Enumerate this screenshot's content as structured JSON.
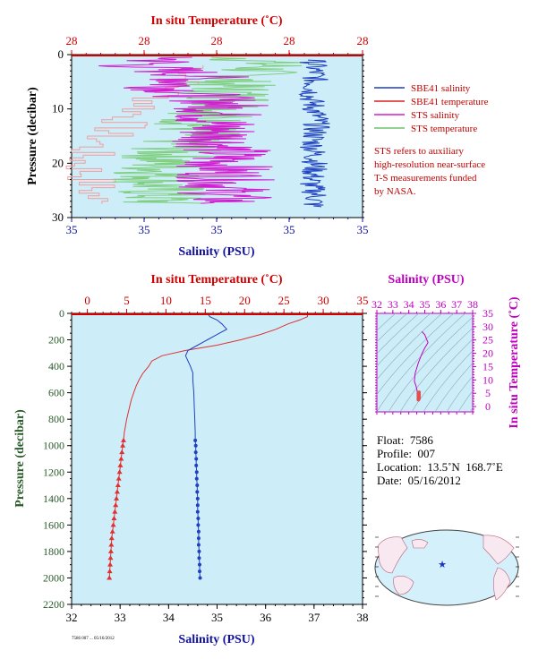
{
  "top_panel": {
    "top_axis_title": "In situ Temperature (˚C)",
    "top_ticks": [
      "28",
      "28",
      "28",
      "28",
      "28"
    ],
    "bottom_axis_title": "Salinity (PSU)",
    "bottom_ticks": [
      "35",
      "35",
      "35",
      "35",
      "35"
    ],
    "left_axis_title": "Pressure (decibar)",
    "left_ticks": [
      "0",
      "10",
      "20",
      "30"
    ],
    "legend": [
      {
        "label": "SBE41 salinity",
        "color": "#1f3fbf"
      },
      {
        "label": "SBE41 temperature",
        "color": "#d62020"
      },
      {
        "label": "STS salinity",
        "color": "#d21bd2"
      },
      {
        "label": "STS temperature",
        "color": "#6fc26f"
      }
    ],
    "note_lines": [
      "STS refers to auxiliary",
      "high-resolution near-surface",
      "T-S measurements funded",
      "by NASA."
    ]
  },
  "main_panel": {
    "top_axis_title": "In situ Temperature (˚C)",
    "top_ticks": [
      "0",
      "5",
      "10",
      "15",
      "20",
      "25",
      "30",
      "35"
    ],
    "bottom_axis_title": "Salinity (PSU)",
    "bottom_ticks": [
      "32",
      "33",
      "34",
      "35",
      "36",
      "37",
      "38"
    ],
    "left_axis_title": "Pressure (decibar)",
    "left_ticks": [
      "0",
      "200",
      "400",
      "600",
      "800",
      "1000",
      "1200",
      "1400",
      "1600",
      "1800",
      "2000",
      "2200"
    ]
  },
  "ts_panel": {
    "top_axis_title": "Salinity (PSU)",
    "top_ticks": [
      "32",
      "33",
      "34",
      "35",
      "36",
      "37",
      "38"
    ],
    "right_axis_title": "In situ Temperature (˚C)",
    "right_ticks": [
      "0",
      "5",
      "10",
      "15",
      "20",
      "25",
      "30",
      "35"
    ]
  },
  "float_info": {
    "float": "Float:  7586",
    "profile": "Profile:  007",
    "location": "Location:  13.5˚N  168.7˚E",
    "date": "Date:  05/16/2012"
  },
  "footnote": "7586 007 ... 05/16/2012",
  "colors": {
    "plot_bg": "#cdeef9",
    "temperature": "#e03030",
    "salinity": "#2040c0",
    "ts_axis": "#c000c0",
    "axis_text_red": "#d00000",
    "axis_text_blue": "#1010a0",
    "axis_text_green": "#2a5a2a"
  },
  "chart_data": [
    {
      "type": "line",
      "title": "",
      "xlabel": "Salinity (PSU)",
      "x2label": "In situ Temperature (˚C)",
      "ylabel": "Pressure (decibar)",
      "ylim": [
        0,
        30
      ],
      "y_inverted": true,
      "series": [
        {
          "name": "SBE41 salinity",
          "x": [
            35.6,
            35.62,
            35.58,
            35.64,
            35.6,
            35.62,
            35.58,
            35.63,
            35.6
          ],
          "y": [
            1,
            4,
            8,
            12,
            16,
            20,
            24,
            26,
            28
          ]
        },
        {
          "name": "STS salinity",
          "x": [
            34.4,
            34.0,
            34.6,
            34.3,
            34.8,
            34.7,
            34.8,
            34.8,
            34.8
          ],
          "y": [
            0.5,
            2,
            4,
            6,
            9,
            12,
            18,
            24,
            27.5
          ]
        },
        {
          "name": "STS temperature",
          "x": [
            35.0,
            35.2,
            34.8,
            34.9,
            34.6,
            34.5,
            34.3,
            34.2,
            34.2
          ],
          "y": [
            0.5,
            2,
            5,
            9,
            12,
            15,
            18,
            22,
            27.5
          ]
        },
        {
          "name": "SBE41 temperature",
          "x": [
            34.6,
            34.4,
            34.2,
            34.0,
            33.8,
            33.6,
            33.5,
            33.6,
            33.6
          ],
          "y": [
            2,
            5,
            8,
            11,
            14,
            17,
            20,
            24,
            27.5
          ]
        }
      ]
    },
    {
      "type": "line",
      "title": "",
      "xlabel": "Salinity (PSU)",
      "x2label": "In situ Temperature (˚C)",
      "ylabel": "Pressure (decibar)",
      "xlim": [
        32,
        38
      ],
      "x2lim": [
        -2,
        35
      ],
      "ylim": [
        0,
        2200
      ],
      "y_inverted": true,
      "series": [
        {
          "name": "temperature",
          "axis": "top",
          "pressure": [
            0,
            25,
            50,
            80,
            120,
            160,
            200,
            240,
            280,
            320,
            360,
            400,
            450,
            500,
            550,
            600,
            650,
            700,
            800,
            900,
            960,
            1000,
            1050,
            1100,
            1150,
            1200,
            1250,
            1300,
            1350,
            1400,
            1450,
            1500,
            1550,
            1600,
            1650,
            1700,
            1750,
            1800,
            1850,
            1900,
            1950,
            2000
          ],
          "values": [
            28.0,
            28.0,
            27.0,
            25.5,
            24.0,
            22.0,
            19.5,
            16.5,
            12.5,
            9.5,
            8.2,
            7.8,
            7.1,
            6.6,
            6.2,
            5.9,
            5.6,
            5.4,
            5.0,
            4.7,
            4.6,
            4.5,
            4.4,
            4.3,
            4.2,
            4.1,
            4.0,
            3.9,
            3.8,
            3.7,
            3.6,
            3.5,
            3.4,
            3.3,
            3.2,
            3.1,
            3.05,
            3.0,
            2.95,
            2.9,
            2.85,
            2.8
          ]
        },
        {
          "name": "salinity",
          "axis": "bottom",
          "pressure": [
            0,
            25,
            50,
            80,
            120,
            160,
            200,
            240,
            280,
            320,
            360,
            400,
            450,
            500,
            600,
            700,
            800,
            900,
            960,
            1000,
            1050,
            1100,
            1150,
            1200,
            1250,
            1300,
            1350,
            1400,
            1450,
            1500,
            1550,
            1600,
            1650,
            1700,
            1750,
            1800,
            1850,
            1900,
            1950,
            2000
          ],
          "values": [
            34.8,
            34.85,
            35.0,
            35.1,
            35.2,
            35.0,
            34.8,
            34.6,
            34.4,
            34.35,
            34.4,
            34.45,
            34.5,
            34.5,
            34.52,
            34.53,
            34.54,
            34.55,
            34.55,
            34.56,
            34.56,
            34.57,
            34.57,
            34.58,
            34.58,
            34.59,
            34.59,
            34.6,
            34.6,
            34.6,
            34.61,
            34.61,
            34.62,
            34.62,
            34.62,
            34.63,
            34.63,
            34.64,
            34.64,
            34.65
          ]
        }
      ]
    },
    {
      "type": "line",
      "title": "",
      "xlabel": "Salinity (PSU)",
      "ylabel": "In situ Temperature (˚C)",
      "xlim": [
        32,
        38
      ],
      "ylim": [
        -2,
        35
      ],
      "series": [
        {
          "name": "T-S",
          "x": [
            34.8,
            34.85,
            35.0,
            35.1,
            35.2,
            35.0,
            34.8,
            34.6,
            34.4,
            34.35,
            34.45,
            34.5,
            34.52,
            34.55,
            34.58,
            34.62,
            34.65
          ],
          "y": [
            28.0,
            28.0,
            27.0,
            25.5,
            24.0,
            22.0,
            19.5,
            16.5,
            12.5,
            9.5,
            7.8,
            6.6,
            5.9,
            4.7,
            4.0,
            3.3,
            2.8
          ]
        }
      ]
    }
  ]
}
